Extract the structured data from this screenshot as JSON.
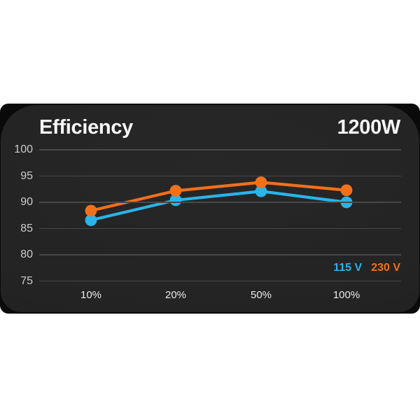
{
  "card": {
    "title": "Efficiency",
    "wattage": "1200W"
  },
  "chart_data": {
    "type": "line",
    "title": "Efficiency",
    "subtitle": "1200W",
    "x_categories": [
      "10%",
      "20%",
      "50%",
      "100%"
    ],
    "y_ticks": [
      100,
      95,
      90,
      85,
      80,
      75
    ],
    "ylim": [
      75,
      100
    ],
    "grid": "horizontal-only",
    "legend_position": "bottom-right-inside",
    "series": [
      {
        "name": "115 V",
        "color": "#29b4ea",
        "values": [
          86.6,
          90.4,
          92.1,
          90.0
        ]
      },
      {
        "name": "230 V",
        "color": "#f3701a",
        "values": [
          88.4,
          92.2,
          93.8,
          92.3
        ]
      }
    ],
    "colors": {
      "card_background": "#232323",
      "card_edge": "#0a0a0a",
      "gridline": "#484848",
      "title_text": "#f7f7f7",
      "tick_text": "#cccccc"
    }
  }
}
